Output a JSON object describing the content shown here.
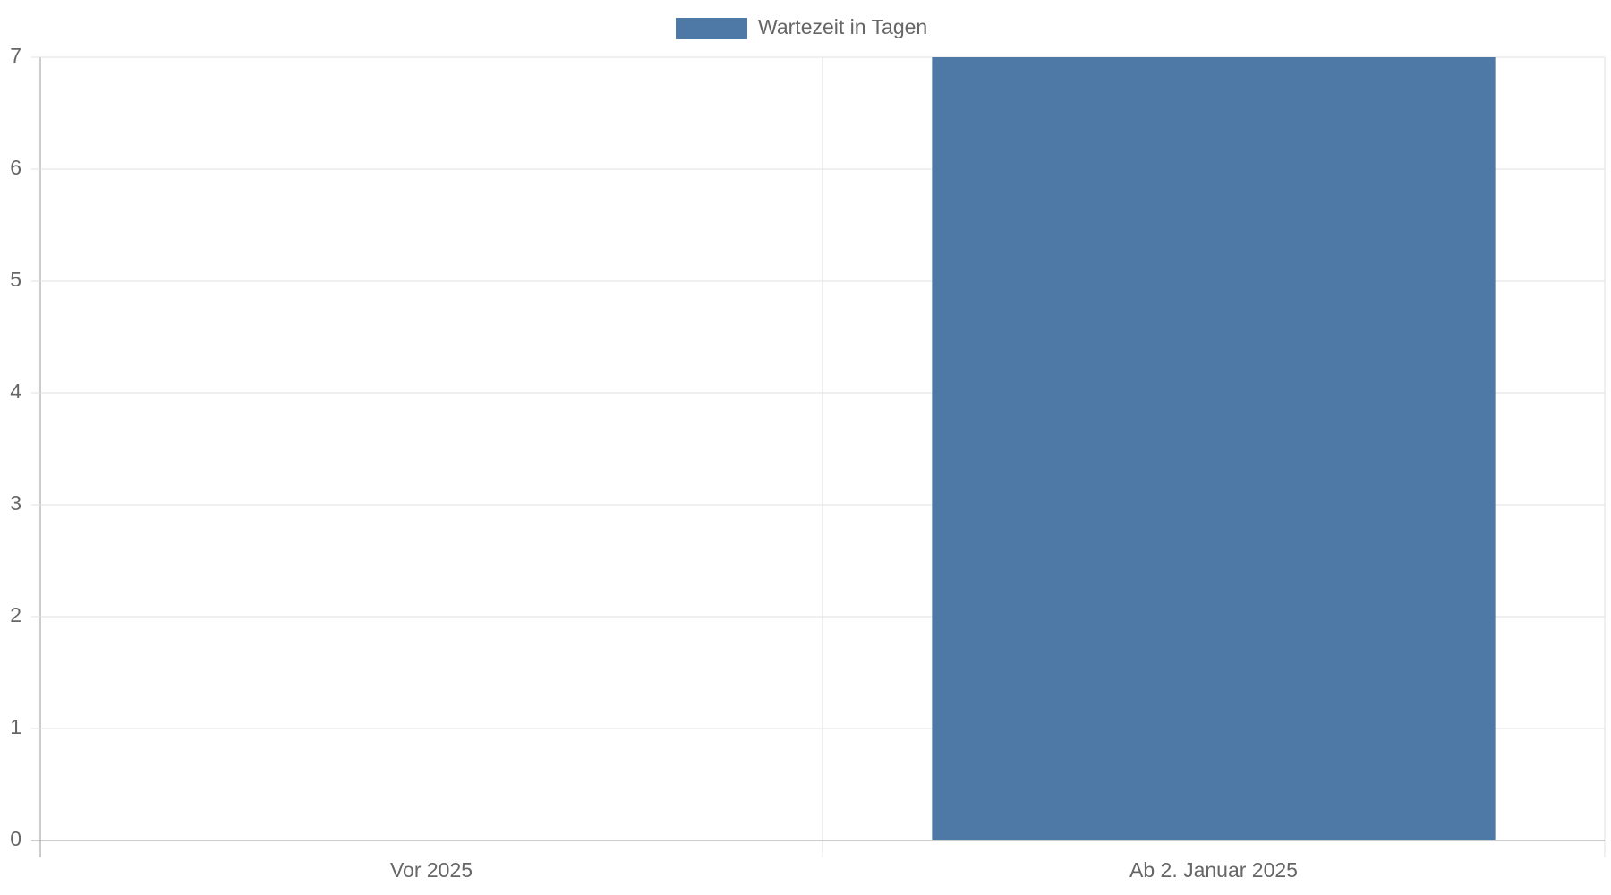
{
  "chart_data": {
    "type": "bar",
    "categories": [
      "Vor 2025",
      "Ab 2. Januar 2025"
    ],
    "series": [
      {
        "name": "Wartezeit in Tagen",
        "color": "#4e79a7",
        "values": [
          0,
          7
        ]
      }
    ],
    "ylim": [
      0,
      7
    ],
    "yticks": [
      0,
      1,
      2,
      3,
      4,
      5,
      6,
      7
    ],
    "grid": true,
    "legend": "top"
  }
}
